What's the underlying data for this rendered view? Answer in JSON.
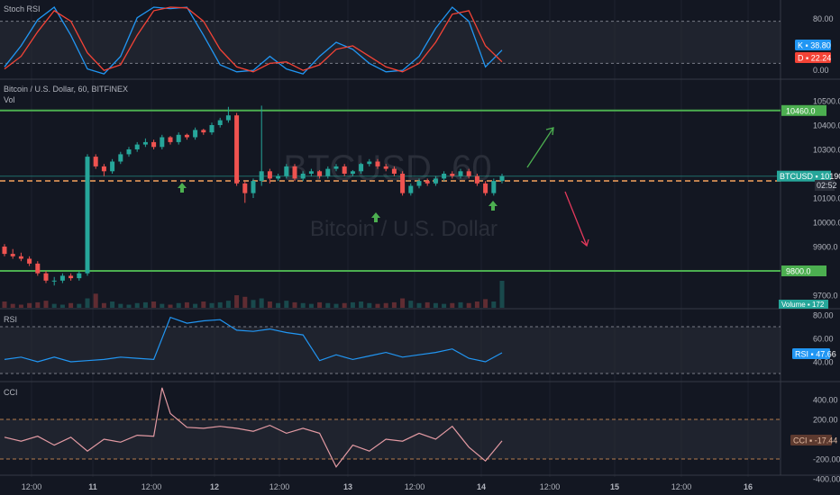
{
  "colors": {
    "background": "#131722",
    "grid": "#1e222d",
    "separator": "#363a45",
    "up": "#26a69a",
    "down": "#ef5350",
    "level_line": "#4caf50",
    "price_dash": "#f7a35c",
    "stoch_k": "#2196f3",
    "stoch_d": "#f44336",
    "rsi_line": "#2196f3",
    "cci_line": "#e39aa3",
    "green_arrow": "#4caf50",
    "red_arrow": "#e5395c"
  },
  "panes": {
    "stoch": {
      "label": "Stoch RSI",
      "ticks": [
        "80.00",
        "0.00"
      ],
      "k_label": "K",
      "k_value": "38.80",
      "d_label": "D",
      "d_value": "22.24"
    },
    "main": {
      "symbol_title": "Bitcoin / U.S. Dollar, 60, BITFINEX",
      "vol_label": "Vol",
      "watermark_ticker": "BTCUSD, 60",
      "watermark_name": "Bitcoin / U.S. Dollar",
      "price_ticks": [
        "10500.0",
        "10400.0",
        "10300.0",
        "10100.0",
        "10000.0",
        "9900.0",
        "9700.0"
      ],
      "level_high_label": "10460.0",
      "level_low_label": "9800.0",
      "last_price_ticker": "BTCUSD",
      "last_price_value": "10190.0",
      "countdown": "02:52",
      "volume_label": "Volume",
      "volume_value": "172"
    },
    "rsi": {
      "label": "RSI",
      "ticks": [
        "80.00",
        "60.00",
        "40.00"
      ],
      "badge_label": "RSI",
      "badge_value": "47.66"
    },
    "cci": {
      "label": "CCI",
      "ticks": [
        "400.00",
        "200.00",
        "-200.00",
        "-400.00"
      ],
      "badge_label": "CCI",
      "badge_value": "-17.44"
    }
  },
  "time_axis": [
    "12:00",
    "11",
    "12:00",
    "12",
    "12:00",
    "13",
    "12:00",
    "14",
    "12:00",
    "15",
    "12:00",
    "16"
  ],
  "chart_data": [
    {
      "type": "line",
      "title": "Stoch RSI",
      "ylim": [
        0,
        100
      ],
      "bands": [
        20,
        80
      ],
      "x": [
        0,
        4,
        8,
        12,
        16,
        20,
        24,
        28,
        32,
        36,
        40,
        44,
        48,
        52,
        56,
        60,
        64,
        68,
        72,
        76,
        80,
        84,
        88,
        92,
        96,
        100,
        104,
        108,
        112,
        116,
        120
      ],
      "series": [
        {
          "name": "K",
          "values": [
            15,
            45,
            82,
            100,
            60,
            12,
            5,
            30,
            85,
            100,
            98,
            100,
            60,
            18,
            8,
            10,
            30,
            12,
            5,
            30,
            50,
            40,
            20,
            8,
            10,
            30,
            70,
            100,
            80,
            15,
            38.8
          ]
        },
        {
          "name": "D",
          "values": [
            12,
            30,
            65,
            95,
            80,
            35,
            10,
            18,
            60,
            95,
            100,
            99,
            80,
            40,
            15,
            8,
            20,
            22,
            10,
            18,
            40,
            45,
            30,
            15,
            8,
            20,
            50,
            90,
            95,
            45,
            22.24
          ]
        }
      ]
    },
    {
      "type": "candlestick",
      "title": "Bitcoin / U.S. Dollar, 60, BITFINEX",
      "ylim": [
        9680,
        10580
      ],
      "x": [
        0,
        2,
        4,
        6,
        8,
        10,
        12,
        14,
        16,
        18,
        20,
        22,
        24,
        26,
        28,
        30,
        32,
        34,
        36,
        38,
        40,
        42,
        44,
        46,
        48,
        50,
        52,
        54,
        56,
        58,
        60,
        62,
        64,
        66,
        68,
        70,
        72,
        74,
        76,
        78,
        80,
        82,
        84,
        86,
        88,
        90,
        92,
        94,
        96,
        98,
        100,
        102,
        104,
        106,
        108,
        110,
        112,
        114,
        116,
        118,
        120
      ],
      "open": [
        9900,
        9870,
        9860,
        9850,
        9830,
        9790,
        9760,
        9760,
        9780,
        9770,
        9790,
        10270,
        10230,
        10210,
        10250,
        10280,
        10300,
        10320,
        10330,
        10310,
        10350,
        10330,
        10360,
        10350,
        10380,
        10370,
        10400,
        10420,
        10440,
        10160,
        10120,
        10170,
        10210,
        10180,
        10190,
        10230,
        10180,
        10200,
        10210,
        10190,
        10220,
        10230,
        10200,
        10210,
        10240,
        10250,
        10230,
        10220,
        10200,
        10120,
        10150,
        10170,
        10160,
        10180,
        10200,
        10190,
        10210,
        10190,
        10160,
        10120,
        10170
      ],
      "close": [
        9870,
        9860,
        9850,
        9830,
        9790,
        9760,
        9760,
        9780,
        9770,
        9790,
        10270,
        10230,
        10210,
        10250,
        10280,
        10300,
        10320,
        10330,
        10310,
        10350,
        10330,
        10360,
        10350,
        10380,
        10370,
        10400,
        10420,
        10440,
        10160,
        10120,
        10170,
        10210,
        10180,
        10190,
        10230,
        10180,
        10200,
        10210,
        10190,
        10220,
        10230,
        10200,
        10210,
        10240,
        10250,
        10230,
        10220,
        10200,
        10120,
        10150,
        10170,
        10160,
        10180,
        10200,
        10190,
        10210,
        10190,
        10160,
        10120,
        10170,
        10190
      ],
      "high": [
        9910,
        9890,
        9875,
        9860,
        9840,
        9800,
        9775,
        9790,
        9790,
        9800,
        10280,
        10280,
        10240,
        10260,
        10290,
        10310,
        10330,
        10345,
        10340,
        10360,
        10355,
        10370,
        10365,
        10390,
        10385,
        10410,
        10430,
        10475,
        10450,
        10170,
        10180,
        10480,
        10220,
        10200,
        10240,
        10240,
        10210,
        10220,
        10215,
        10230,
        10240,
        10240,
        10215,
        10245,
        10260,
        10260,
        10240,
        10230,
        10210,
        10160,
        10180,
        10180,
        10190,
        10210,
        10210,
        10220,
        10220,
        10200,
        10170,
        10180,
        10200
      ],
      "low": [
        9860,
        9850,
        9840,
        9820,
        9780,
        9750,
        9740,
        9750,
        9760,
        9760,
        9780,
        10220,
        10190,
        10200,
        10240,
        10270,
        10290,
        10310,
        10300,
        10300,
        10320,
        10320,
        10340,
        10340,
        10360,
        10360,
        10390,
        10410,
        10150,
        10080,
        10100,
        10150,
        10160,
        10170,
        10180,
        10170,
        10170,
        10190,
        10180,
        10180,
        10210,
        10190,
        10190,
        10200,
        10230,
        10220,
        10210,
        10190,
        10110,
        10110,
        10140,
        10150,
        10150,
        10170,
        10180,
        10180,
        10180,
        10150,
        10110,
        10110,
        10160
      ]
    },
    {
      "type": "bar",
      "title": "Volume",
      "values": [
        40,
        25,
        20,
        30,
        35,
        45,
        25,
        20,
        30,
        25,
        60,
        90,
        30,
        40,
        25,
        20,
        30,
        35,
        40,
        25,
        20,
        30,
        35,
        25,
        40,
        30,
        35,
        45,
        80,
        70,
        50,
        60,
        40,
        30,
        45,
        35,
        30,
        25,
        35,
        30,
        25,
        30,
        35,
        40,
        30,
        25,
        30,
        35,
        60,
        45,
        30,
        35,
        30,
        25,
        30,
        35,
        30,
        40,
        55,
        40,
        172
      ]
    },
    {
      "type": "line",
      "title": "RSI",
      "ylim": [
        20,
        85
      ],
      "bands": [
        30,
        70
      ],
      "x": [
        0,
        4,
        8,
        12,
        16,
        20,
        24,
        28,
        32,
        36,
        40,
        44,
        48,
        52,
        56,
        60,
        64,
        68,
        72,
        76,
        80,
        84,
        88,
        92,
        96,
        100,
        104,
        108,
        112,
        116,
        120
      ],
      "values": [
        42,
        44,
        40,
        44,
        40,
        41,
        42,
        44,
        43,
        42,
        78,
        73,
        75,
        76,
        67,
        66,
        68,
        65,
        63,
        41,
        46,
        42,
        45,
        48,
        44,
        46,
        48,
        51,
        43,
        40,
        47.66
      ]
    },
    {
      "type": "line",
      "title": "CCI",
      "ylim": [
        -500,
        550
      ],
      "bands": [
        -200,
        200
      ],
      "x": [
        0,
        4,
        8,
        12,
        16,
        20,
        24,
        28,
        32,
        36,
        38,
        40,
        44,
        48,
        52,
        56,
        60,
        64,
        68,
        72,
        76,
        80,
        84,
        88,
        92,
        96,
        100,
        104,
        108,
        112,
        116,
        120
      ],
      "values": [
        20,
        -20,
        30,
        -60,
        20,
        -120,
        0,
        -30,
        40,
        30,
        520,
        260,
        120,
        110,
        130,
        110,
        80,
        140,
        60,
        110,
        60,
        -280,
        -60,
        -120,
        0,
        -20,
        60,
        0,
        130,
        -80,
        -220,
        -17.44
      ]
    }
  ]
}
